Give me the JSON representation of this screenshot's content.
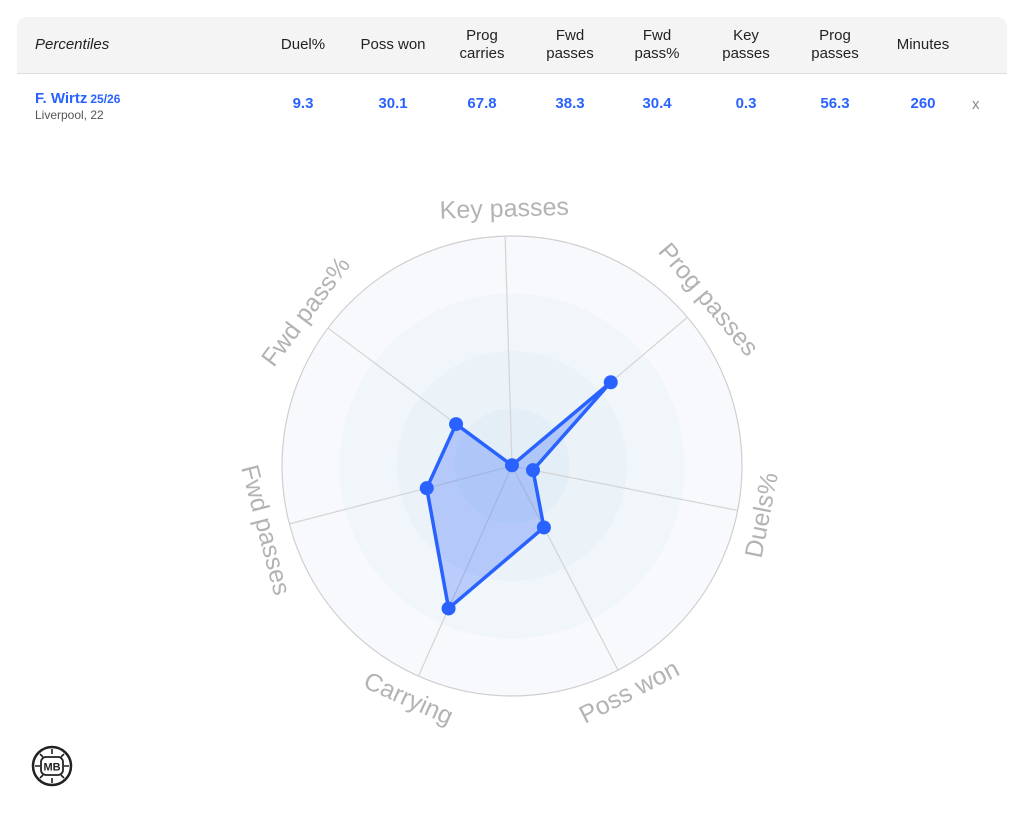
{
  "table": {
    "header": {
      "title": "Percentiles",
      "columns": [
        "Duel%",
        "Poss won",
        "Prog\ncarries",
        "Fwd\npasses",
        "Fwd\npass%",
        "Key\npasses",
        "Prog\npasses",
        "Minutes"
      ]
    },
    "player": {
      "name": "F. Wirtz",
      "season": "25/26",
      "club": "Liverpool, 22",
      "values": [
        "9.3",
        "30.1",
        "67.8",
        "38.3",
        "30.4",
        "0.3",
        "56.3",
        "260"
      ],
      "remove": "x"
    }
  },
  "chart_data": {
    "type": "radar",
    "axes": [
      "Key passes",
      "Prog passes",
      "Duels%",
      "Poss won",
      "Carrying",
      "Fwd passes",
      "Fwd pass%"
    ],
    "series": [
      {
        "values": [
          0.3,
          56.3,
          9.3,
          30.1,
          67.8,
          38.3,
          30.4
        ],
        "color": "#2962ff"
      }
    ],
    "range": [
      0,
      100
    ],
    "rings": 4
  },
  "logo_text": "MB"
}
